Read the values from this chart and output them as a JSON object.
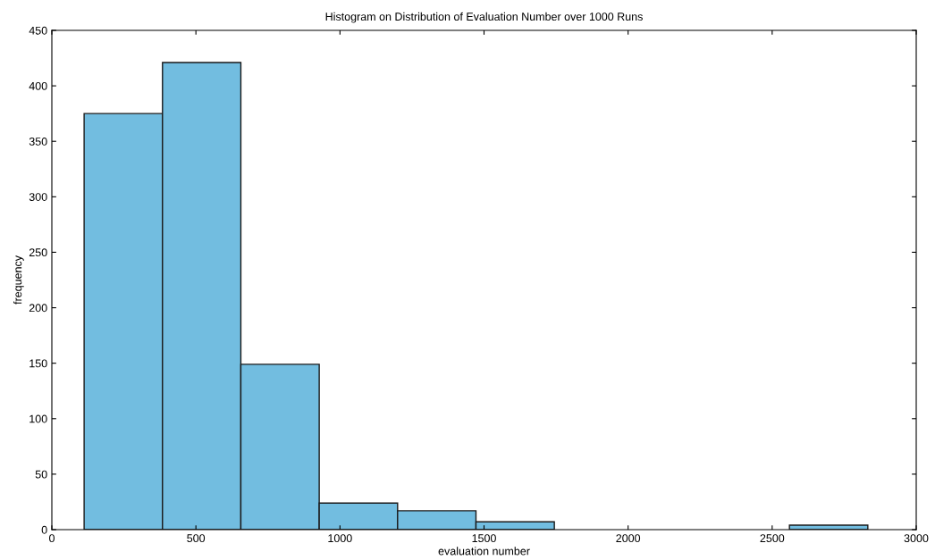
{
  "chart_data": {
    "type": "histogram",
    "title": "Histogram on Distribution of Evaluation Number over 1000 Runs",
    "xlabel": "evaluation number",
    "ylabel": "frequency",
    "bins": [
      112,
      384,
      656,
      928,
      1200,
      1472,
      1744,
      2016,
      2288,
      2560,
      2832
    ],
    "values": [
      375,
      421,
      149,
      24,
      17,
      7,
      null,
      null,
      null,
      4
    ],
    "color": "#72bde0",
    "xlim": [
      0,
      3000
    ],
    "xticks": [
      0,
      500,
      1000,
      1500,
      2000,
      2500,
      3000
    ],
    "ylim": [
      0,
      450
    ],
    "yticks": [
      0,
      50,
      100,
      150,
      200,
      250,
      300,
      350,
      400,
      450
    ],
    "grid": false
  }
}
